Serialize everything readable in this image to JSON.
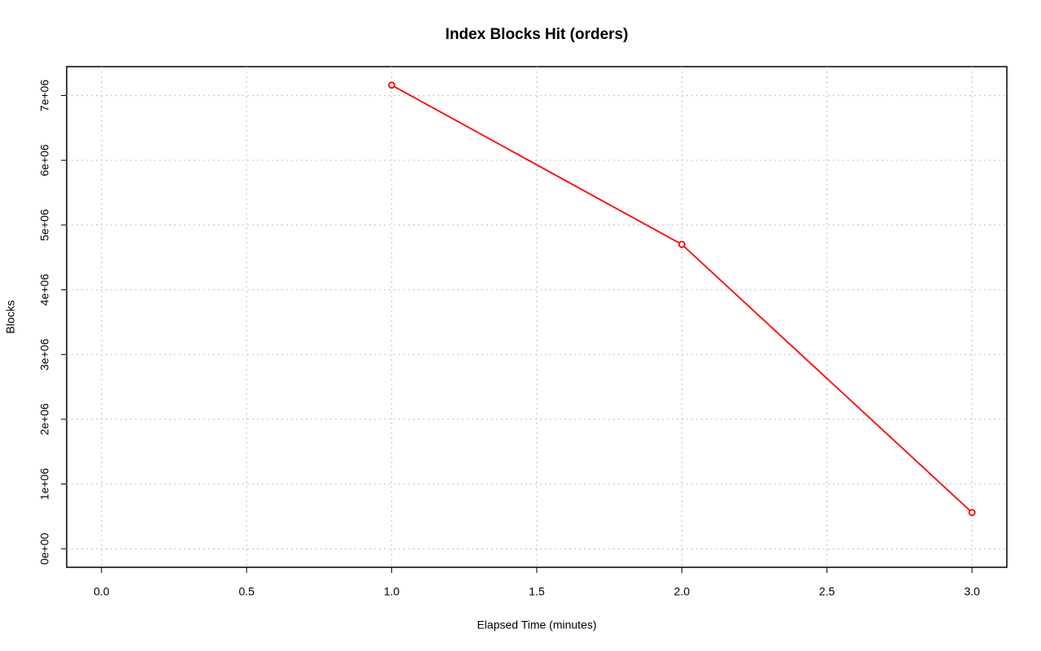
{
  "chart_data": {
    "type": "line",
    "title": "Index Blocks Hit (orders)",
    "x_label": "Elapsed Time (minutes)",
    "y_label": "Blocks",
    "x": [
      1,
      2,
      3
    ],
    "series": [
      {
        "name": "orders",
        "color": "#ff0000",
        "values": [
          7160000,
          4700000,
          560000
        ]
      }
    ],
    "xlim": [
      -0.12,
      3.12
    ],
    "ylim": [
      -286000,
      7446000
    ],
    "xticks": [
      {
        "value": 0,
        "label": "0.0"
      },
      0.5,
      {
        "value": 1,
        "label": "1.0"
      },
      1.5,
      {
        "value": 2,
        "label": "2.0"
      },
      2.5,
      {
        "value": 3,
        "label": "3.0"
      }
    ],
    "yticks": [
      {
        "value": 0,
        "label": "0e+00"
      },
      {
        "value": 1000000,
        "label": "1e+06"
      },
      {
        "value": 2000000,
        "label": "2e+06"
      },
      {
        "value": 3000000,
        "label": "3e+06"
      },
      {
        "value": 4000000,
        "label": "4e+06"
      },
      {
        "value": 5000000,
        "label": "5e+06"
      },
      {
        "value": 6000000,
        "label": "6e+06"
      },
      {
        "value": 7000000,
        "label": "7e+06"
      }
    ],
    "grid": true
  }
}
